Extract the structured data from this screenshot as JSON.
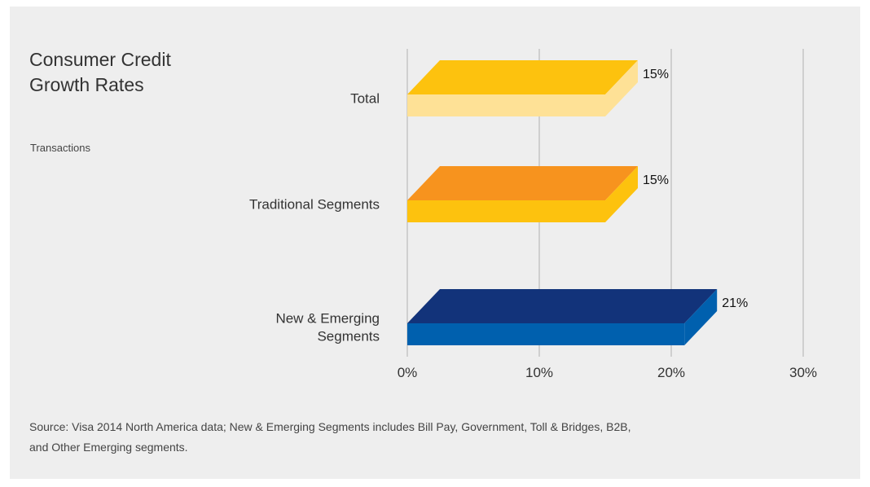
{
  "header": {
    "title": "Consumer Credit Growth Rates",
    "subtitle": "Transactions"
  },
  "footer": {
    "source": "Source: Visa 2014 North America data; New & Emerging Segments includes Bill Pay, Government, Toll & Bridges, B2B, and Other Emerging segments."
  },
  "chart_data": {
    "type": "bar",
    "orientation": "horizontal",
    "title": "Consumer Credit Growth Rates",
    "subtitle": "Transactions",
    "categories": [
      {
        "lines": [
          "Total"
        ]
      },
      {
        "lines": [
          "Traditional Segments"
        ]
      },
      {
        "lines": [
          "New & Emerging",
          "Segments"
        ]
      }
    ],
    "values": [
      15,
      15,
      21
    ],
    "data_labels": [
      "15%",
      "15%",
      "21%"
    ],
    "bar_colors": [
      {
        "top": "#FDC20E",
        "front": "#FEE196",
        "side": "#FEE196"
      },
      {
        "top": "#F7931E",
        "front": "#FDC20E",
        "side": "#FDC20E"
      },
      {
        "top": "#12337A",
        "front": "#0060AE",
        "side": "#0060AE"
      }
    ],
    "xlim": [
      0,
      30
    ],
    "x_ticks": [
      0,
      10,
      20,
      30
    ],
    "x_tick_labels": [
      "0%",
      "10%",
      "20%",
      "30%"
    ],
    "grid": true,
    "grid_color": "#cfcfcf",
    "style": "3d"
  }
}
